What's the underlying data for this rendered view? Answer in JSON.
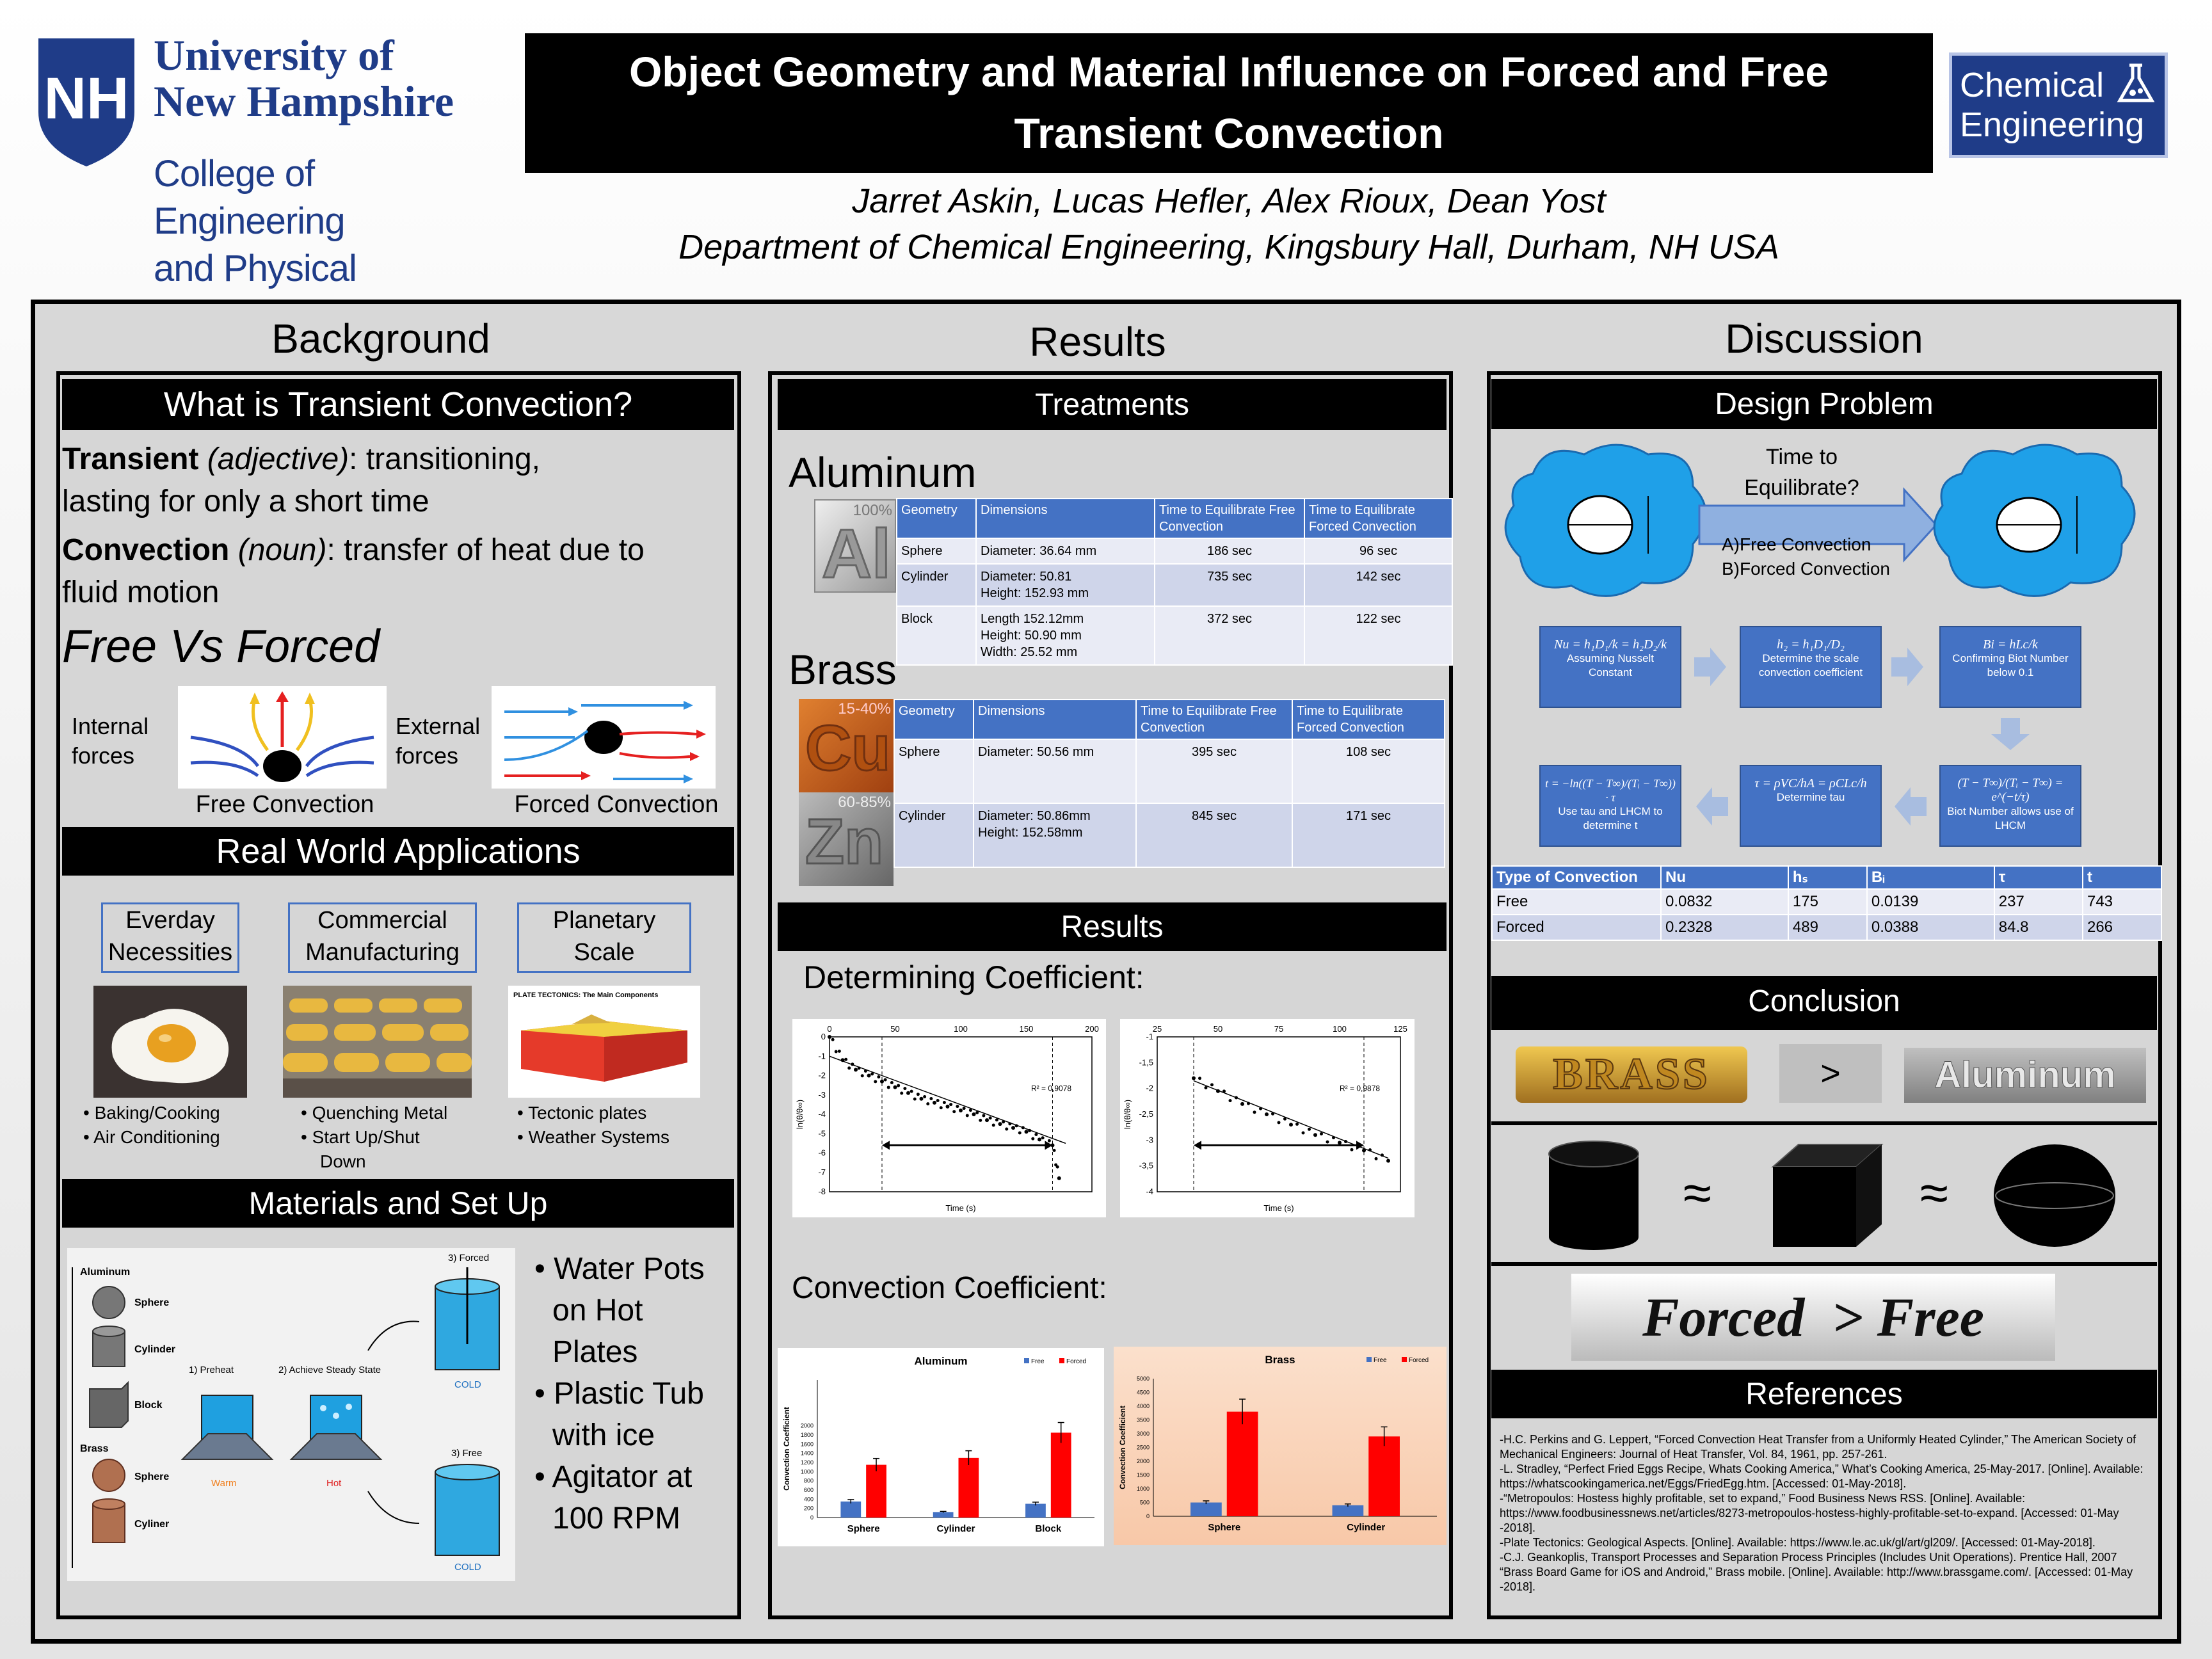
{
  "header": {
    "university_line1": "University of",
    "university_line2": "New Hampshire",
    "college_line1": "College of Engineering",
    "college_line2": "and Physical Sciences",
    "title_line1": "Object Geometry and Material Influence on Forced and Free",
    "title_line2": "Transient Convection",
    "authors": "Jarret Askin, Lucas Hefler, Alex Rioux, Dean Yost",
    "department": "Department of Chemical Engineering, Kingsbury Hall, Durham, NH  USA",
    "logo_line1": "Chemical",
    "logo_line2": "Engineering",
    "shield_letters": "NH"
  },
  "background": {
    "heading": "Background",
    "what_title": "What is Transient Convection?",
    "transient_term": "Transient",
    "transient_pos": "(adjective)",
    "transient_def1": ": transitioning,",
    "transient_def2": "lasting for only a short time",
    "convection_term": "Convection",
    "convection_pos": "(noun)",
    "convection_def1": ": transfer of heat due to",
    "convection_def2": "fluid motion",
    "free_vs_forced": "Free Vs Forced",
    "internal_forces1": "Internal",
    "internal_forces2": "forces",
    "external_forces1": "External",
    "external_forces2": "forces",
    "free_caption": "Free Convection",
    "forced_caption": "Forced Convection",
    "apps_title": "Real World Applications",
    "apps": [
      {
        "line1": "Everday",
        "line2": "Necessities",
        "bullets": [
          "Baking/Cooking",
          "Air Conditioning"
        ]
      },
      {
        "line1": "Commercial",
        "line2": "Manufacturing",
        "bullets": [
          "Quenching Metal",
          "Start Up/Shut",
          "Down"
        ]
      },
      {
        "line1": "Planetary",
        "line2": "Scale",
        "bullets": [
          "Tectonic plates",
          "Weather Systems"
        ]
      }
    ],
    "tectonic_caption": "PLATE TECTONICS: The Main Components",
    "materials_title": "Materials and Set Up",
    "setup_labels": {
      "aluminum": "Aluminum",
      "sphere": "Sphere",
      "cylinder": "Cylinder",
      "block": "Block",
      "brass": "Brass",
      "sphere2": "Sphere",
      "cyliner": "Cyliner",
      "preheat": "1) Preheat",
      "steady": "2) Achieve Steady State",
      "forced": "3) Forced",
      "free": "3) Free",
      "warm": "Warm",
      "hot": "Hot",
      "cold1": "COLD",
      "cold2": "COLD"
    },
    "materials_bullets": [
      "Water Pots",
      "on Hot",
      "Plates",
      "Plastic Tub",
      "with ice",
      "Agitator at",
      "100 RPM"
    ]
  },
  "results": {
    "heading": "Results",
    "treatments_title": "Treatments",
    "aluminum_label": "Aluminum",
    "al_symbol": "Al",
    "al_pct": "100%",
    "aluminum_table": {
      "headers": [
        "Geometry",
        "Dimensions",
        "Time to Equilibrate Free Convection",
        "Time to Equilibrate Forced Convection"
      ],
      "rows": [
        [
          "Sphere",
          "Diameter: 36.64 mm",
          "186 sec",
          "96 sec"
        ],
        [
          "Cylinder",
          "Diameter: 50.81\nHeight: 152.93 mm",
          "735 sec",
          "142 sec"
        ],
        [
          "Block",
          "Length 152.12mm\nHeight: 50.90 mm\nWidth:  25.52 mm",
          "372 sec",
          "122 sec"
        ]
      ]
    },
    "brass_label": "Brass",
    "cu_symbol": "Cu",
    "cu_pct": "15-40%",
    "zn_symbol": "Zn",
    "zn_pct": "60-85%",
    "brass_table": {
      "headers": [
        "Geometry",
        "Dimensions",
        "Time to Equilibrate Free Convection",
        "Time to Equilibrate Forced Convection"
      ],
      "rows": [
        [
          "Sphere",
          "Diameter: 50.56 mm",
          "395 sec",
          "108 sec"
        ],
        [
          "Cylinder",
          "Diameter: 50.86mm\nHeight: 152.58mm",
          "845 sec",
          "171 sec"
        ]
      ]
    },
    "results_title": "Results",
    "determining_label": "Determining Coefficient:",
    "convection_label": "Convection Coefficient:"
  },
  "chart_data": [
    {
      "type": "scatter",
      "title": "",
      "xlabel": "Time (s)",
      "ylabel": "ln(θ/θ∞)",
      "xlim": [
        0,
        200
      ],
      "ylim": [
        -8,
        0
      ],
      "xticks": [
        "0",
        "50",
        "100",
        "150",
        "200"
      ],
      "yticks": [
        "0",
        "-1",
        "-2",
        "-3",
        "-4",
        "-5",
        "-6",
        "-7",
        "-8"
      ],
      "annotation": "R² = 0,9078",
      "series": [
        {
          "x": [
            0,
            10,
            20,
            30,
            40,
            50,
            60,
            70,
            80,
            90,
            100,
            110,
            120,
            130,
            140,
            150,
            160,
            170,
            175
          ],
          "y": [
            0,
            -1.2,
            -1.7,
            -2.0,
            -2.3,
            -2.6,
            -2.9,
            -3.2,
            -3.4,
            -3.6,
            -3.8,
            -4.0,
            -4.3,
            -4.5,
            -4.7,
            -4.9,
            -5.3,
            -5.6,
            -7.3
          ]
        }
      ],
      "fit": {
        "x": [
          0,
          180
        ],
        "y": [
          -1.0,
          -5.5
        ]
      }
    },
    {
      "type": "scatter",
      "title": "",
      "xlabel": "Time (s)",
      "ylabel": "ln(θ/θ∞)",
      "xlim": [
        25,
        125
      ],
      "ylim": [
        -4,
        -1
      ],
      "xticks": [
        "25",
        "50",
        "75",
        "100",
        "125"
      ],
      "yticks": [
        "-1",
        "-1,5",
        "-2",
        "-2,5",
        "-3",
        "-3,5",
        "-4"
      ],
      "annotation": "R² = 0,9878",
      "series": [
        {
          "x": [
            40,
            50,
            60,
            70,
            80,
            90,
            100,
            110,
            120
          ],
          "y": [
            -1.8,
            -2.05,
            -2.3,
            -2.5,
            -2.7,
            -2.9,
            -3.05,
            -3.2,
            -3.4
          ]
        }
      ],
      "fit": {
        "x": [
          40,
          120
        ],
        "y": [
          -1.85,
          -3.35
        ]
      }
    },
    {
      "type": "bar",
      "title": "Aluminum",
      "xlabel": "",
      "ylabel": "Convection Coefficient",
      "categories": [
        "Sphere",
        "Cylinder",
        "Block"
      ],
      "ylim": [
        0,
        3000
      ],
      "yticks": [
        "0",
        "200",
        "400",
        "600",
        "800",
        "1000",
        "1200",
        "1400",
        "1600",
        "1800",
        "2000"
      ],
      "series": [
        {
          "name": "Free",
          "values": [
            350,
            120,
            300
          ],
          "color": "#4472c4"
        },
        {
          "name": "Forced",
          "values": [
            1150,
            1300,
            1850
          ],
          "color": "#ff0000"
        }
      ]
    },
    {
      "type": "bar",
      "title": "Brass",
      "xlabel": "",
      "ylabel": "Convection Coefficient",
      "categories": [
        "Sphere",
        "Cylinder"
      ],
      "ylim": [
        0,
        5000
      ],
      "yticks": [
        "0",
        "500",
        "1000",
        "1500",
        "2000",
        "2500",
        "3000",
        "3500",
        "4000",
        "4500",
        "5000"
      ],
      "series": [
        {
          "name": "Free",
          "values": [
            500,
            400
          ],
          "color": "#4472c4"
        },
        {
          "name": "Forced",
          "values": [
            3800,
            2900
          ],
          "color": "#ff0000"
        }
      ]
    }
  ],
  "discussion": {
    "heading": "Discussion",
    "design_title": "Design Problem",
    "time_q1": "Time to",
    "time_q2": "Equilibrate?",
    "opt_a": "A)Free Convection",
    "opt_b": "B)Forced Convection",
    "flow": [
      {
        "eq": "Nu = h₁D₁/k = h₂D₂/k",
        "text": "Assuming Nusselt Constant"
      },
      {
        "eq": "h₂ = h₁D₁/D₂",
        "text": "Determine the scale convection coefficient"
      },
      {
        "eq": "Bi = hLc/k",
        "text": "Confirming Biot Number below 0.1"
      },
      {
        "eq": "(T − T∞)/(Tᵢ − T∞) = e^(−t/τ)",
        "text": "Biot Number allows use of LHCM"
      },
      {
        "eq": "τ = ρVC/hA = ρCLc/h",
        "text": "Determine tau"
      },
      {
        "eq": "t = −ln((T − T∞)/(Tᵢ − T∞)) · τ",
        "text": "Use tau and LHCM to determine t"
      }
    ],
    "coef_table": {
      "headers": [
        "Type of Convection",
        "Nu",
        "hₛ",
        "Bᵢ",
        "τ",
        "t"
      ],
      "rows": [
        [
          "Free",
          "0.0832",
          "175",
          "0.0139",
          "237",
          "743"
        ],
        [
          "Forced",
          "0.2328",
          "489",
          "0.0388",
          "84.8",
          "266"
        ]
      ]
    },
    "conclusion_title": "Conclusion",
    "brass_word": "BRASS",
    "gt": ">",
    "aluminum_word": "Aluminum",
    "approx1": "≈",
    "approx2": "≈",
    "forced_free": "Forced  > Free",
    "references_title": "References",
    "references": [
      "-H.C. Perkins and G. Leppert, “Forced Convection Heat Transfer from a Uniformly Heated Cylinder,”  The American Society of Mechanical Engineers: Journal of Heat Transfer, Vol. 84, 1961, pp. 257-261.",
      "-L. Stradley, “Perfect Fried Eggs Recipe, Whats Cooking America,” What’s Cooking America, 25-May-2017. [Online]. Available: https://whatscookingamerica.net/Eggs/FriedEgg.htm. [Accessed: 01-May-2018].",
      "-“Metropoulos: Hostess highly profitable, set to expand,” Food Business News RSS. [Online]. Available: https://www.foodbusinessnews.net/articles/8273-metropoulos-hostess-highly-profitable-set-to-expand. [Accessed: 01-May -2018].",
      "-Plate Tectonics: Geological Aspects. [Online]. Available: https://www.le.ac.uk/gl/art/gl209/. [Accessed: 01-May-2018].",
      "-C.J. Geankoplis, Transport Processes and Separation Process Principles (Includes Unit Operations). Prentice Hall, 2007",
      "“Brass Board Game for iOS and Android,” Brass mobile. [Online]. Available: http://www.brassgame.com/. [Accessed: 01-May -2018]."
    ]
  }
}
